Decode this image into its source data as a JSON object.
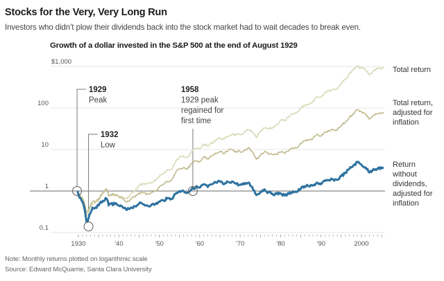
{
  "header": {
    "title": "Stocks for the Very, Very Long Run",
    "subtitle": "Investors who didn’t plow their dividends back into the stock market had to wait decades to break even."
  },
  "footer": {
    "note": "Note: Monthly returns plotted on logarithmic scale",
    "source": "Source: Edward McQuarrie, Santa Clara University"
  },
  "chart_data": {
    "type": "line",
    "title": "Growth of a dollar invested in the S&P 500 at the end of August 1929",
    "xlabel": "",
    "ylabel": "",
    "yscale": "log",
    "ylim": [
      0.1,
      1000
    ],
    "xlim": [
      1929.67,
      2005.5
    ],
    "grid": true,
    "y_ticks": [
      {
        "value": 1000,
        "label": "$1,000"
      },
      {
        "value": 100,
        "label": "100"
      },
      {
        "value": 10,
        "label": "10"
      },
      {
        "value": 1,
        "label": "1"
      },
      {
        "value": 0.1,
        "label": "0.1"
      }
    ],
    "x_ticks": [
      {
        "value": 1930,
        "label": "1930"
      },
      {
        "value": 1940,
        "label": "’40"
      },
      {
        "value": 1950,
        "label": "’50"
      },
      {
        "value": 1960,
        "label": "’60"
      },
      {
        "value": 1970,
        "label": "’70"
      },
      {
        "value": 1980,
        "label": "’80"
      },
      {
        "value": 1990,
        "label": "’90"
      },
      {
        "value": 2000,
        "label": "2000"
      }
    ],
    "x": [
      1929.67,
      1930,
      1930.5,
      1931,
      1931.5,
      1932,
      1932.5,
      1933,
      1933.5,
      1934,
      1935,
      1936,
      1937,
      1937.5,
      1938,
      1939,
      1940,
      1941,
      1942,
      1943,
      1944,
      1945,
      1946,
      1947,
      1948,
      1949,
      1950,
      1951,
      1952,
      1953,
      1954,
      1955,
      1956,
      1957,
      1958,
      1959,
      1960,
      1961,
      1962,
      1963,
      1964,
      1965,
      1966,
      1967,
      1968,
      1969,
      1970,
      1971,
      1972,
      1973,
      1974,
      1975,
      1976,
      1977,
      1978,
      1979,
      1980,
      1981,
      1982,
      1983,
      1984,
      1985,
      1986,
      1987,
      1988,
      1989,
      1990,
      1991,
      1992,
      1993,
      1994,
      1995,
      1996,
      1997,
      1998,
      1999,
      2000,
      2001,
      2002,
      2003,
      2004,
      2005,
      2005.5
    ],
    "series": [
      {
        "name": "Total return",
        "color": "#d9d8b4",
        "values": [
          1,
          0.85,
          0.72,
          0.6,
          0.45,
          0.25,
          0.3,
          0.4,
          0.5,
          0.5,
          0.6,
          0.85,
          1.1,
          0.75,
          0.8,
          0.82,
          0.75,
          0.7,
          0.65,
          0.85,
          1.0,
          1.35,
          1.5,
          1.5,
          1.6,
          1.75,
          2.2,
          2.7,
          3.2,
          3.3,
          5.0,
          6.5,
          7.0,
          6.6,
          9.0,
          10.5,
          10.5,
          13.5,
          12.0,
          14.5,
          17.0,
          19.0,
          17.5,
          21.0,
          23.5,
          22.0,
          22.5,
          25.5,
          30.0,
          26.0,
          19.5,
          26.5,
          33.0,
          31.0,
          33.0,
          39.0,
          51.0,
          49.0,
          59.0,
          72.0,
          77.0,
          100.0,
          118.0,
          125.0,
          145.0,
          190.0,
          185.0,
          240.0,
          260.0,
          285.0,
          290.0,
          395.0,
          485.0,
          650.0,
          830.0,
          1000.0,
          920.0,
          820.0,
          630.0,
          800.0,
          890.0,
          920.0,
          940.0
        ]
      },
      {
        "name": "Total return, adjusted for inflation",
        "color": "#bfb98a",
        "values": [
          1,
          0.88,
          0.76,
          0.68,
          0.52,
          0.3,
          0.35,
          0.45,
          0.55,
          0.55,
          0.65,
          0.9,
          1.1,
          0.78,
          0.82,
          0.82,
          0.73,
          0.66,
          0.55,
          0.65,
          0.72,
          0.9,
          0.9,
          0.85,
          0.9,
          1.0,
          1.25,
          1.45,
          1.7,
          1.8,
          2.7,
          3.5,
          3.7,
          3.4,
          4.6,
          5.2,
          5.2,
          6.6,
          5.8,
          7.0,
          8.1,
          8.8,
          7.9,
          9.3,
          10.0,
          9.0,
          8.8,
          9.6,
          11.0,
          8.8,
          5.8,
          7.3,
          8.8,
          7.7,
          7.5,
          7.8,
          8.6,
          8.0,
          9.2,
          11.0,
          11.0,
          14.0,
          16.5,
          17.0,
          18.5,
          23.0,
          21.0,
          26.0,
          27.5,
          29.5,
          29.0,
          38.0,
          45.0,
          59.0,
          74.0,
          92.0,
          82.0,
          72.0,
          54.0,
          67.0,
          72.0,
          74.0,
          76.0
        ]
      },
      {
        "name": "Return without dividends, adjusted for inflation",
        "color": "#2e72a0",
        "values": [
          1,
          0.82,
          0.68,
          0.55,
          0.38,
          0.18,
          0.22,
          0.3,
          0.4,
          0.38,
          0.45,
          0.58,
          0.65,
          0.45,
          0.5,
          0.48,
          0.45,
          0.4,
          0.35,
          0.4,
          0.43,
          0.5,
          0.48,
          0.45,
          0.46,
          0.48,
          0.55,
          0.6,
          0.66,
          0.65,
          0.85,
          1.0,
          1.0,
          0.92,
          1.1,
          1.25,
          1.2,
          1.45,
          1.25,
          1.45,
          1.6,
          1.68,
          1.45,
          1.65,
          1.7,
          1.5,
          1.4,
          1.45,
          1.6,
          1.25,
          0.8,
          0.95,
          1.1,
          0.92,
          0.86,
          0.85,
          0.88,
          0.78,
          0.85,
          0.98,
          0.95,
          1.15,
          1.3,
          1.3,
          1.35,
          1.6,
          1.45,
          1.75,
          1.8,
          1.9,
          1.85,
          2.3,
          2.7,
          3.4,
          4.1,
          5.0,
          4.3,
          3.7,
          2.8,
          3.4,
          3.5,
          3.5,
          3.6
        ]
      }
    ],
    "legend": [
      {
        "label": "Total return",
        "series": 0
      },
      {
        "label": "Total return, adjusted for inflation",
        "series": 1
      },
      {
        "label": "Return without dividends, adjusted for inflation",
        "series": 2
      }
    ],
    "legend_placement": "right-end-labels",
    "annotations": [
      {
        "year_label": "1929",
        "text": "Peak",
        "x": 1929.67,
        "y": 1
      },
      {
        "year_label": "1932",
        "text": "Low",
        "x": 1932.5,
        "y": 0.14
      },
      {
        "year_label": "1958",
        "text": "1929 peak regained for first time",
        "x": 1958.3,
        "y": 1
      }
    ]
  }
}
